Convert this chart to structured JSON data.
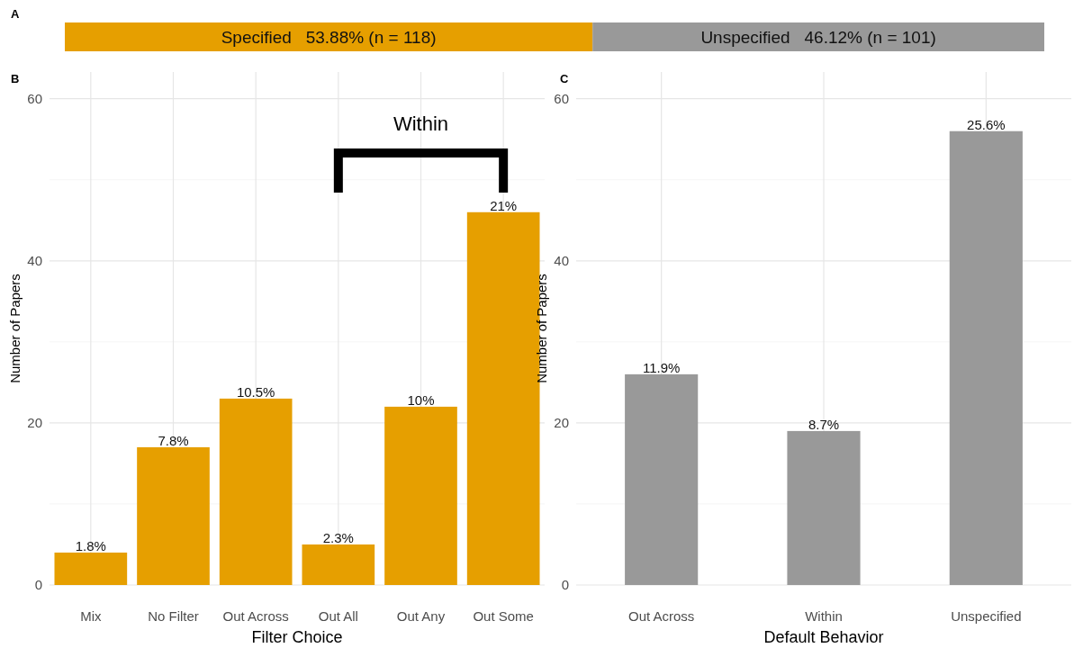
{
  "chart_data": [
    {
      "type": "bar",
      "orientation": "horizontal",
      "stacked": true,
      "categories": [
        null
      ],
      "annotations": [
        "A"
      ],
      "series": [
        {
          "color": "#e69f00",
          "values": [
            53.88
          ],
          "value_labels": [
            "Specified   53.88% (n = 118)"
          ]
        },
        {
          "color": "#999999",
          "values": [
            46.12
          ],
          "value_labels": [
            "Unspecified   46.12% (n = 101)"
          ]
        }
      ]
    },
    {
      "type": "bar",
      "categories": [
        "Mix",
        "No Filter",
        "Out Across",
        "Out All",
        "Out Any",
        "Out Some"
      ],
      "values": [
        4,
        17,
        23,
        5,
        22,
        46
      ],
      "color": "#e69f00",
      "xlabel": "Filter Choice",
      "ylabel": "Number of Papers",
      "ylim": [
        0,
        63.3
      ],
      "yticks": [
        0,
        {
          "value": 10,
          "label": null
        },
        20,
        {
          "value": 30,
          "label": null
        },
        40,
        {
          "value": 50,
          "label": null
        },
        60
      ],
      "grid": true,
      "annotations": [
        "B",
        "Within",
        {
          "text": "1.8%",
          "x": "Mix",
          "y": 4
        },
        {
          "text": "7.8%",
          "x": "No Filter",
          "y": 17
        },
        {
          "text": "10.5%",
          "x": "Out Across",
          "y": 23
        },
        {
          "text": "2.3%",
          "x": "Out All",
          "y": 5
        },
        {
          "text": "10%",
          "x": "Out Any",
          "y": 22
        },
        {
          "text": "21%",
          "x": "Out Some",
          "y": 46
        }
      ]
    },
    {
      "type": "bar",
      "categories": [
        "Out Across",
        "Within",
        "Unspecified"
      ],
      "values": [
        26,
        19,
        56
      ],
      "color": "#999999",
      "xlabel": "Default Behavior",
      "ylabel": "Number of Papers",
      "ylim": [
        0,
        63.3
      ],
      "yticks": [
        0,
        {
          "value": 10,
          "label": null
        },
        20,
        {
          "value": 30,
          "label": null
        },
        40,
        {
          "value": 50,
          "label": null
        },
        60
      ],
      "grid": true,
      "annotations": [
        "C",
        {
          "text": "11.9%",
          "x": "Out Across",
          "y": 26
        },
        {
          "text": "8.7%",
          "x": "Within",
          "y": 19
        },
        {
          "text": "25.6%",
          "x": "Unspecified",
          "y": 56
        }
      ]
    }
  ]
}
